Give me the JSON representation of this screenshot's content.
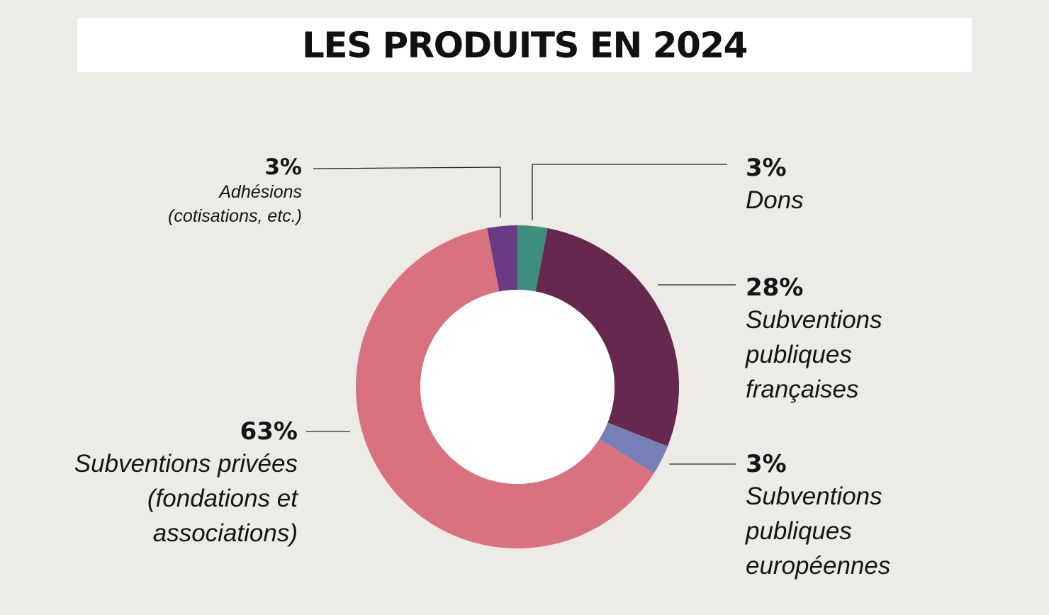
{
  "chart_data": {
    "type": "pie",
    "title": "LES PRODUITS EN 2024",
    "donut": true,
    "slices": [
      {
        "label_pct": "3%",
        "value": 3,
        "name": "Dons",
        "color": "#3e8e7e"
      },
      {
        "label_pct": "28%",
        "value": 28,
        "name": "Subventions\npubliques\nfrançaises",
        "color": "#67284e"
      },
      {
        "label_pct": "3%",
        "value": 3,
        "name": "Subventions\npubliques\neuropéennes",
        "color": "#7680b7"
      },
      {
        "label_pct": "63%",
        "value": 63,
        "name": "Subventions privées\n(fondations et\nassociations)",
        "color": "#d9727f"
      },
      {
        "label_pct": "3%",
        "value": 3,
        "name": "Adhésions\n(cotisations, etc.)",
        "color": "#6a3a85"
      }
    ]
  }
}
